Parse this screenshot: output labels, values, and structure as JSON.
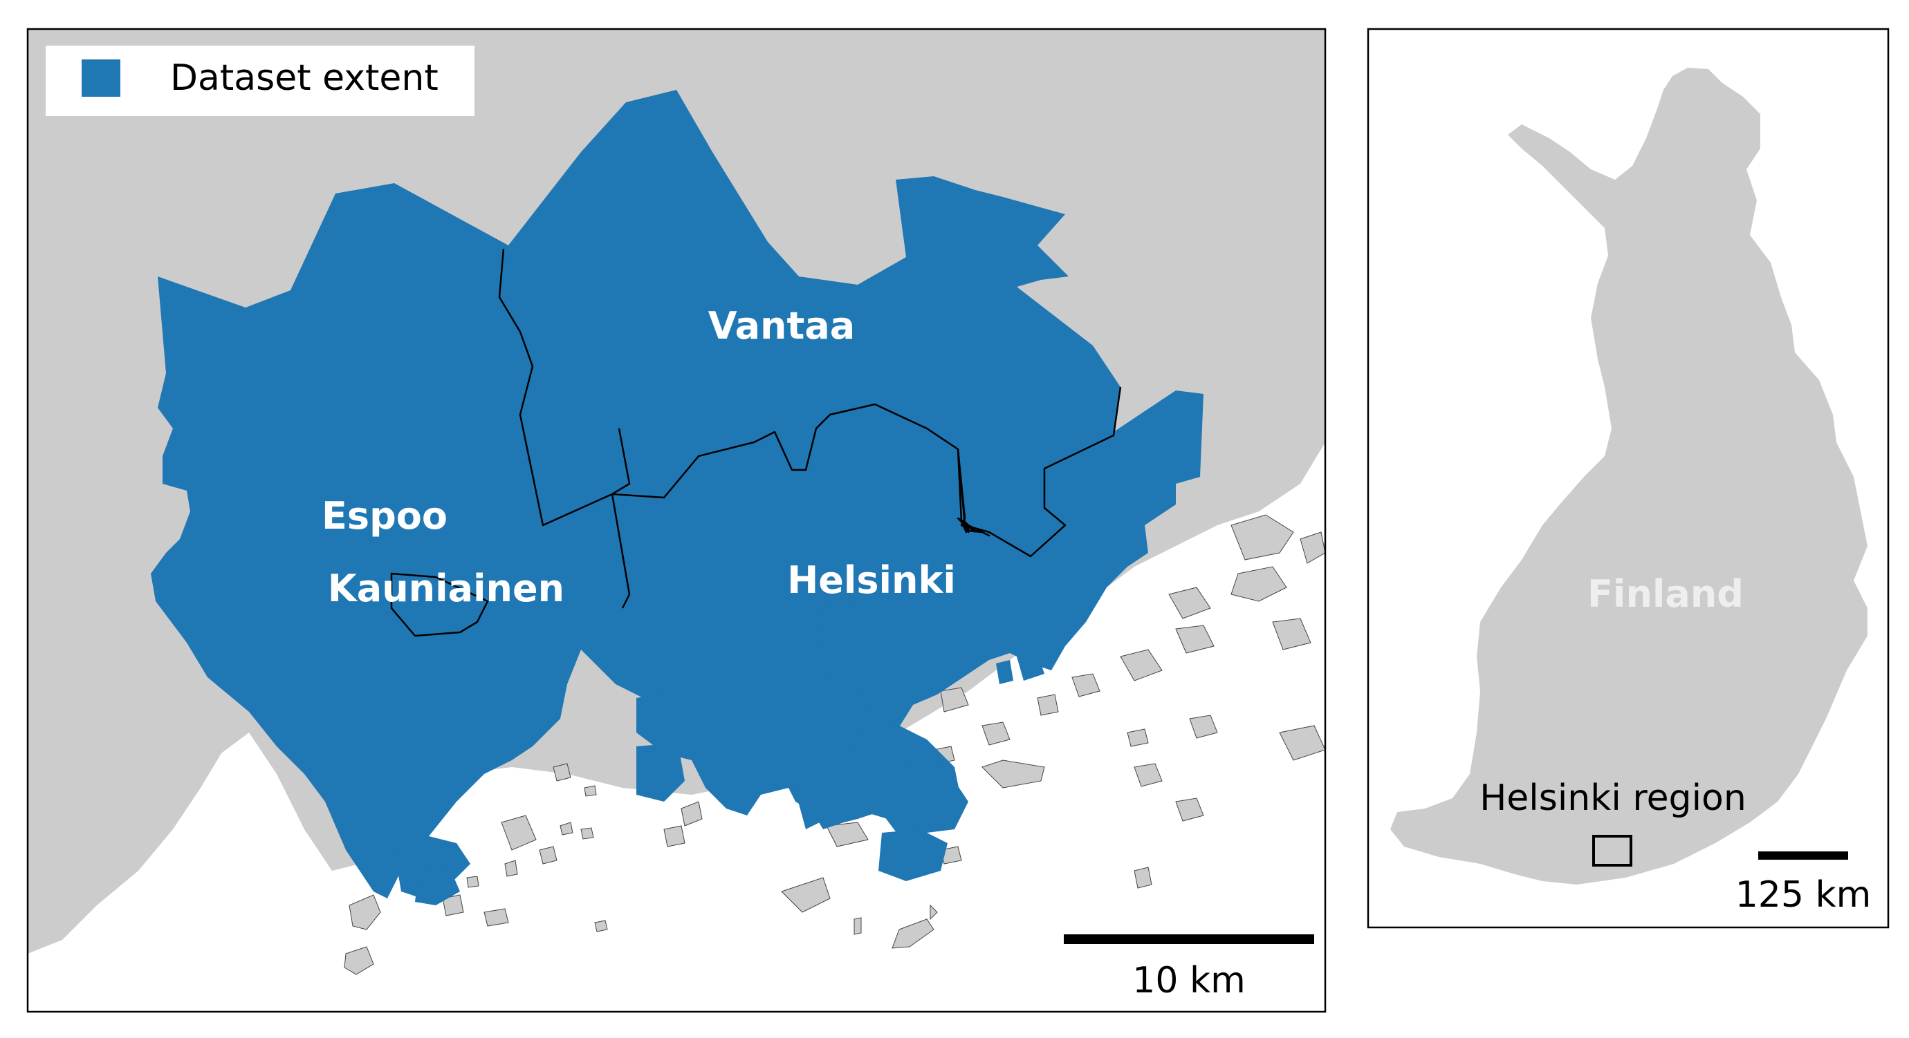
{
  "legend": {
    "entry": "Dataset extent",
    "color": "#1f77b4"
  },
  "main_map": {
    "municipalities": [
      {
        "id": "espoo",
        "label": "Espoo"
      },
      {
        "id": "kauniainen",
        "label": "Kauniainen"
      },
      {
        "id": "vantaa",
        "label": "Vantaa"
      },
      {
        "id": "helsinki",
        "label": "Helsinki"
      }
    ],
    "scalebar_label": "10 km",
    "land_color": "#cccccc",
    "water_color": "#ffffff"
  },
  "inset_map": {
    "country_label": "Finland",
    "region_label": "Helsinki region",
    "scalebar_label": "125 km",
    "land_color": "#cccccc"
  }
}
